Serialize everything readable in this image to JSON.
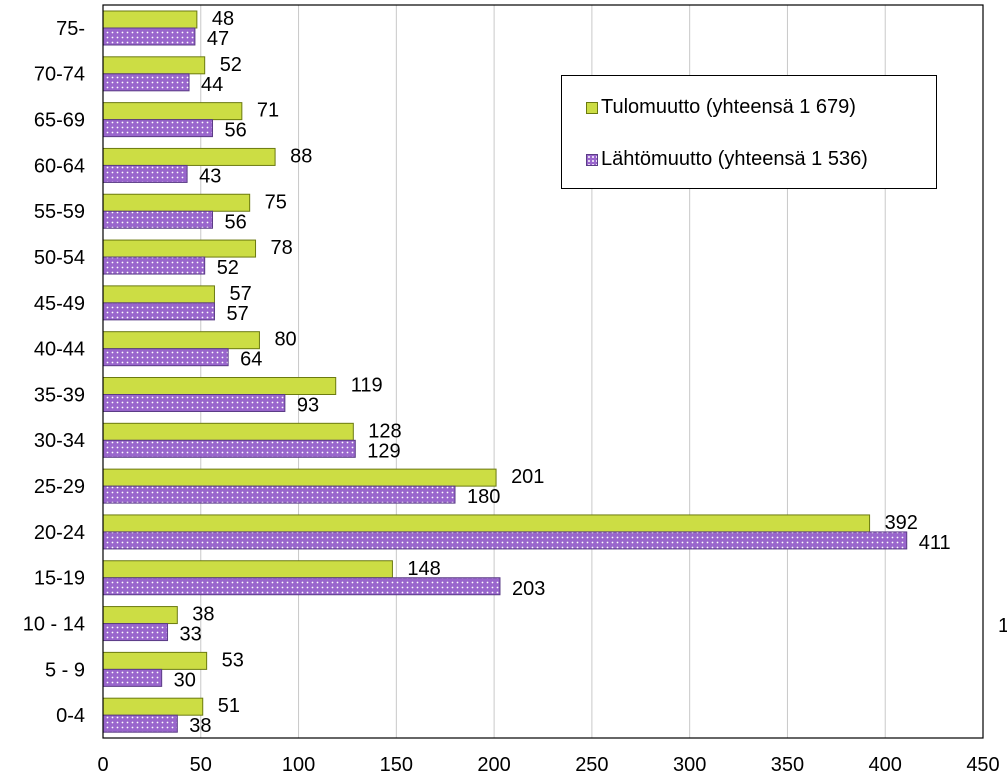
{
  "chart_data": {
    "type": "bar",
    "orientation": "horizontal",
    "categories": [
      "75-",
      "70-74",
      "65-69",
      "60-64",
      "55-59",
      "50-54",
      "45-49",
      "40-44",
      "35-39",
      "30-34",
      "25-29",
      "20-24",
      "15-19",
      "10 - 14",
      "5 - 9",
      "0-4"
    ],
    "series": [
      {
        "name": "Tulomuutto (yhteensä 1 679)",
        "color": "#ccdd44",
        "values": [
          48,
          52,
          71,
          88,
          75,
          78,
          57,
          80,
          119,
          128,
          201,
          392,
          148,
          38,
          53,
          51
        ]
      },
      {
        "name": "Lähtömuutto (yhteensä 1 536)",
        "color": "#9966cc",
        "values": [
          47,
          44,
          56,
          43,
          56,
          52,
          57,
          64,
          93,
          129,
          180,
          411,
          203,
          33,
          30,
          38
        ]
      }
    ],
    "x_ticks": [
      "0",
      "50",
      "100",
      "150",
      "200",
      "250",
      "300",
      "350",
      "400",
      "450"
    ],
    "xlim": [
      0,
      450
    ],
    "grid": true,
    "legend_position": "top-right",
    "stray_label": "1"
  }
}
